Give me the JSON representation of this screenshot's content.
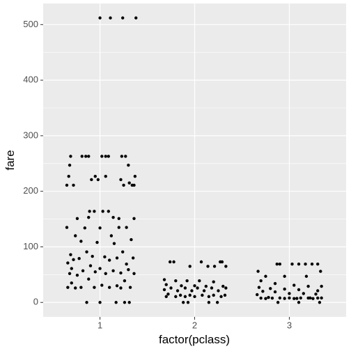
{
  "chart_data": {
    "type": "scatter",
    "x_label": "factor(pclass)",
    "y_label": "fare",
    "xlim": [
      0.4,
      3.6
    ],
    "xticks": [
      1,
      2,
      3
    ],
    "ylim": [
      -26,
      538
    ],
    "yticks": [
      0,
      100,
      200,
      300,
      400,
      500
    ],
    "yminor": [
      50,
      150,
      250,
      350,
      450
    ],
    "grid": true,
    "color": "#000000",
    "series": [
      {
        "x": [
          1.0,
          1.11,
          1.24,
          1.38,
          0.69,
          0.81,
          0.85,
          0.88,
          1.02,
          1.06,
          1.09,
          1.23,
          1.27,
          0.68,
          1.3,
          0.67,
          1.37,
          0.95,
          0.91,
          0.98,
          1.06,
          0.72,
          0.65,
          1.25,
          1.34,
          1.36,
          1.22,
          1.31,
          0.89,
          0.94,
          1.03,
          1.09,
          0.76,
          0.88,
          1.14,
          1.2,
          1.36,
          0.65,
          0.84,
          1.0,
          1.2,
          1.28,
          0.74,
          1.12,
          1.33,
          0.8,
          0.97,
          1.15,
          0.86,
          1.24,
          0.69,
          0.92,
          1.05,
          1.18,
          1.35,
          0.78,
          0.72,
          1.1,
          0.66,
          1.28,
          0.9,
          0.7,
          1.0,
          1.3,
          0.82,
          1.14,
          0.95,
          1.22,
          0.68,
          1.06,
          1.36,
          0.76,
          0.88,
          1.26,
          0.7,
          1.02,
          1.18,
          0.66,
          0.8,
          0.94,
          1.1,
          1.32,
          0.74,
          1.22,
          0.86,
          1.0,
          1.17,
          1.26,
          1.31
        ],
        "values": [
          512,
          512,
          512,
          512,
          263,
          263,
          263,
          263,
          263,
          263,
          263,
          263,
          263,
          247,
          247,
          227,
          227,
          227,
          221,
          221,
          227,
          211,
          211,
          211,
          211,
          211,
          221,
          215,
          164,
          164,
          164,
          164,
          151,
          153,
          153,
          151,
          151,
          135,
          134,
          134,
          135,
          135,
          120,
          120,
          113,
          110,
          108,
          106,
          91,
          91,
          86,
          83,
          82,
          80,
          80,
          79,
          77,
          76,
          71,
          69,
          66,
          61,
          61,
          59,
          57,
          57,
          55,
          53,
          52,
          52,
          52,
          49,
          42,
          39,
          35,
          31,
          30,
          27,
          27,
          27,
          27,
          27,
          26,
          26,
          0,
          0,
          0,
          0,
          0
        ]
      },
      {
        "x": [
          1.74,
          1.78,
          2.07,
          2.27,
          2.29,
          1.95,
          2.21,
          2.33,
          2.14,
          1.68,
          1.8,
          1.92,
          2.05,
          2.2,
          1.7,
          1.86,
          2.0,
          2.12,
          2.3,
          1.75,
          1.9,
          2.03,
          2.18,
          2.33,
          1.68,
          1.82,
          1.97,
          2.1,
          2.25,
          1.72,
          1.85,
          1.95,
          2.08,
          2.2,
          2.32,
          1.7,
          1.8,
          1.9,
          2.0,
          2.15,
          2.28,
          1.88,
          1.93,
          2.15,
          2.24
        ],
        "values": [
          73,
          73,
          73,
          73,
          73,
          65,
          65,
          65,
          65,
          41,
          39,
          39,
          39,
          37,
          32,
          30,
          30,
          29,
          29,
          26,
          26,
          26,
          26,
          26,
          23,
          21,
          21,
          21,
          21,
          15,
          13,
          13,
          13,
          13,
          13,
          10.5,
          10.5,
          10.5,
          10.5,
          10.5,
          10.5,
          0,
          0,
          0,
          0
        ]
      },
      {
        "x": [
          2.67,
          3.03,
          3.1,
          3.17,
          3.24,
          2.87,
          2.9,
          3.3,
          3.33,
          2.75,
          2.95,
          3.18,
          2.7,
          2.85,
          3.05,
          3.2,
          3.34,
          2.68,
          2.8,
          2.95,
          3.1,
          3.3,
          2.72,
          2.85,
          3.0,
          3.15,
          3.28,
          2.66,
          2.78,
          2.9,
          3.0,
          3.12,
          3.22,
          3.34,
          2.7,
          2.82,
          2.95,
          3.08,
          3.2,
          3.3,
          2.75,
          3.05,
          3.25,
          2.88,
          3.1,
          3.32
        ],
        "values": [
          56,
          69,
          69,
          69,
          69,
          69,
          69,
          69,
          56,
          47,
          47,
          47,
          39,
          34,
          31,
          29,
          29,
          27,
          25,
          24,
          23,
          21,
          20,
          19,
          16,
          16,
          15,
          14,
          9,
          8,
          8,
          8,
          8,
          8,
          7.8,
          7.8,
          7.2,
          7.2,
          7.9,
          7.9,
          7,
          7,
          7,
          0,
          0,
          0
        ]
      }
    ]
  }
}
